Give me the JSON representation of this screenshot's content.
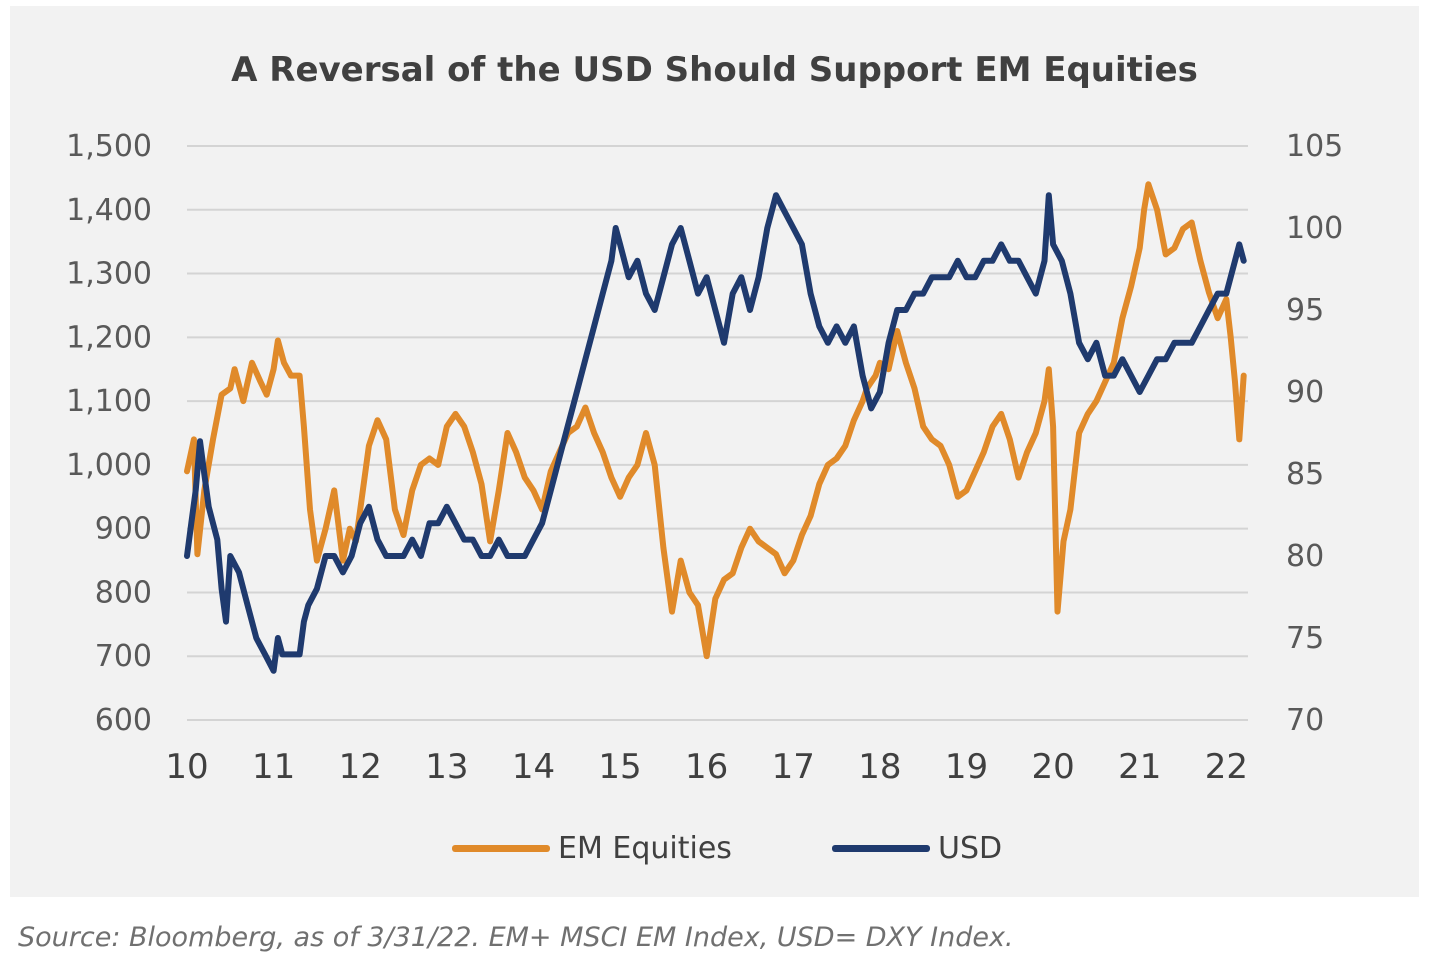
{
  "source_note": "Source: Bloomberg, as of 3/31/22. EM+ MSCI EM Index, USD= DXY Index.",
  "chart_data": {
    "type": "line",
    "title": "A Reversal of the USD Should Support EM Equities",
    "x_ticks": [
      "10",
      "11",
      "12",
      "13",
      "14",
      "15",
      "16",
      "17",
      "18",
      "19",
      "20",
      "21",
      "22"
    ],
    "xlim": [
      2010,
      2022.25
    ],
    "y_left": {
      "ylim": [
        600,
        1500
      ],
      "ticks": [
        "600",
        "700",
        "800",
        "900",
        "1,000",
        "1,100",
        "1,200",
        "1,300",
        "1,400",
        "1,500"
      ]
    },
    "y_right": {
      "ylim": [
        70,
        105
      ],
      "ticks": [
        "70",
        "75",
        "80",
        "85",
        "90",
        "95",
        "100",
        "105"
      ]
    },
    "grid": true,
    "legend": "bottom",
    "series": [
      {
        "name": "EM Equities",
        "axis": "left",
        "color": "#e08a2a",
        "x": [
          2010.0,
          2010.08,
          2010.12,
          2010.2,
          2010.3,
          2010.4,
          2010.5,
          2010.55,
          2010.65,
          2010.75,
          2010.85,
          2010.92,
          2011.0,
          2011.05,
          2011.12,
          2011.2,
          2011.3,
          2011.35,
          2011.42,
          2011.5,
          2011.6,
          2011.7,
          2011.8,
          2011.88,
          2011.95,
          2012.1,
          2012.2,
          2012.3,
          2012.4,
          2012.5,
          2012.6,
          2012.7,
          2012.8,
          2012.9,
          2013.0,
          2013.1,
          2013.2,
          2013.3,
          2013.4,
          2013.5,
          2013.6,
          2013.7,
          2013.8,
          2013.9,
          2014.0,
          2014.1,
          2014.2,
          2014.3,
          2014.4,
          2014.5,
          2014.6,
          2014.7,
          2014.8,
          2014.9,
          2015.0,
          2015.1,
          2015.2,
          2015.3,
          2015.4,
          2015.5,
          2015.6,
          2015.7,
          2015.8,
          2015.9,
          2016.0,
          2016.1,
          2016.2,
          2016.3,
          2016.4,
          2016.5,
          2016.6,
          2016.7,
          2016.8,
          2016.9,
          2017.0,
          2017.1,
          2017.2,
          2017.3,
          2017.4,
          2017.5,
          2017.6,
          2017.7,
          2017.8,
          2017.85,
          2017.95,
          2018.0,
          2018.1,
          2018.2,
          2018.3,
          2018.4,
          2018.5,
          2018.6,
          2018.7,
          2018.8,
          2018.9,
          2019.0,
          2019.1,
          2019.2,
          2019.3,
          2019.4,
          2019.5,
          2019.6,
          2019.7,
          2019.8,
          2019.9,
          2019.95,
          2020.0,
          2020.05,
          2020.12,
          2020.2,
          2020.3,
          2020.4,
          2020.5,
          2020.6,
          2020.7,
          2020.8,
          2020.9,
          2021.0,
          2021.05,
          2021.1,
          2021.2,
          2021.3,
          2021.4,
          2021.5,
          2021.6,
          2021.7,
          2021.8,
          2021.9,
          2022.0,
          2022.05,
          2022.1,
          2022.15,
          2022.2
        ],
        "values": [
          990,
          1040,
          860,
          960,
          1040,
          1110,
          1120,
          1150,
          1100,
          1160,
          1130,
          1110,
          1150,
          1195,
          1160,
          1140,
          1140,
          1060,
          930,
          850,
          900,
          960,
          850,
          900,
          880,
          1030,
          1070,
          1040,
          930,
          890,
          960,
          1000,
          1010,
          1000,
          1060,
          1080,
          1060,
          1020,
          970,
          880,
          960,
          1050,
          1020,
          980,
          960,
          930,
          990,
          1020,
          1050,
          1060,
          1090,
          1050,
          1020,
          980,
          950,
          980,
          1000,
          1050,
          1000,
          870,
          770,
          850,
          800,
          780,
          700,
          790,
          820,
          830,
          870,
          900,
          880,
          870,
          860,
          830,
          850,
          890,
          920,
          970,
          1000,
          1010,
          1030,
          1070,
          1100,
          1120,
          1140,
          1160,
          1150,
          1210,
          1160,
          1120,
          1060,
          1040,
          1030,
          1000,
          950,
          960,
          990,
          1020,
          1060,
          1080,
          1040,
          980,
          1020,
          1050,
          1100,
          1150,
          1060,
          770,
          880,
          930,
          1050,
          1080,
          1100,
          1130,
          1160,
          1230,
          1280,
          1340,
          1400,
          1440,
          1400,
          1330,
          1340,
          1370,
          1380,
          1320,
          1270,
          1230,
          1260,
          1200,
          1130,
          1040,
          1140
        ]
      },
      {
        "name": "USD",
        "axis": "right",
        "color": "#1f3a6e",
        "x": [
          2010.0,
          2010.05,
          2010.1,
          2010.15,
          2010.2,
          2010.25,
          2010.3,
          2010.35,
          2010.4,
          2010.45,
          2010.5,
          2010.6,
          2010.7,
          2010.8,
          2010.9,
          2011.0,
          2011.05,
          2011.1,
          2011.2,
          2011.3,
          2011.35,
          2011.4,
          2011.5,
          2011.6,
          2011.7,
          2011.8,
          2011.9,
          2012.0,
          2012.1,
          2012.2,
          2012.3,
          2012.4,
          2012.5,
          2012.6,
          2012.7,
          2012.8,
          2012.9,
          2013.0,
          2013.1,
          2013.2,
          2013.3,
          2013.4,
          2013.5,
          2013.6,
          2013.7,
          2013.8,
          2013.9,
          2014.0,
          2014.1,
          2014.2,
          2014.3,
          2014.4,
          2014.5,
          2014.6,
          2014.7,
          2014.8,
          2014.9,
          2014.95,
          2015.0,
          2015.1,
          2015.2,
          2015.3,
          2015.4,
          2015.5,
          2015.6,
          2015.7,
          2015.8,
          2015.9,
          2016.0,
          2016.1,
          2016.2,
          2016.3,
          2016.4,
          2016.5,
          2016.6,
          2016.7,
          2016.8,
          2016.9,
          2017.0,
          2017.1,
          2017.2,
          2017.3,
          2017.4,
          2017.5,
          2017.6,
          2017.7,
          2017.8,
          2017.9,
          2018.0,
          2018.1,
          2018.2,
          2018.3,
          2018.4,
          2018.5,
          2018.6,
          2018.7,
          2018.8,
          2018.9,
          2019.0,
          2019.1,
          2019.2,
          2019.3,
          2019.4,
          2019.5,
          2019.6,
          2019.7,
          2019.8,
          2019.9,
          2019.95,
          2020.0,
          2020.1,
          2020.2,
          2020.3,
          2020.4,
          2020.5,
          2020.6,
          2020.7,
          2020.8,
          2020.9,
          2021.0,
          2021.1,
          2021.2,
          2021.3,
          2021.4,
          2021.5,
          2021.6,
          2021.7,
          2021.8,
          2021.9,
          2022.0,
          2022.1,
          2022.15,
          2022.2
        ],
        "values": [
          80,
          82,
          84,
          87,
          85,
          83,
          82,
          81,
          78,
          76,
          80,
          79,
          77,
          75,
          74,
          73,
          75,
          74,
          74,
          74,
          76,
          77,
          78,
          80,
          80,
          79,
          80,
          82,
          83,
          81,
          80,
          80,
          80,
          81,
          80,
          82,
          82,
          83,
          82,
          81,
          81,
          80,
          80,
          81,
          80,
          80,
          80,
          81,
          82,
          84,
          86,
          88,
          90,
          92,
          94,
          96,
          98,
          100,
          99,
          97,
          98,
          96,
          95,
          97,
          99,
          100,
          98,
          96,
          97,
          95,
          93,
          96,
          97,
          95,
          97,
          100,
          102,
          101,
          100,
          99,
          96,
          94,
          93,
          94,
          93,
          94,
          91,
          89,
          90,
          93,
          95,
          95,
          96,
          96,
          97,
          97,
          97,
          98,
          97,
          97,
          98,
          98,
          99,
          98,
          98,
          97,
          96,
          98,
          102,
          99,
          98,
          96,
          93,
          92,
          93,
          91,
          91,
          92,
          91,
          90,
          91,
          92,
          92,
          93,
          93,
          93,
          94,
          95,
          96,
          96,
          98,
          99,
          98
        ]
      }
    ]
  }
}
